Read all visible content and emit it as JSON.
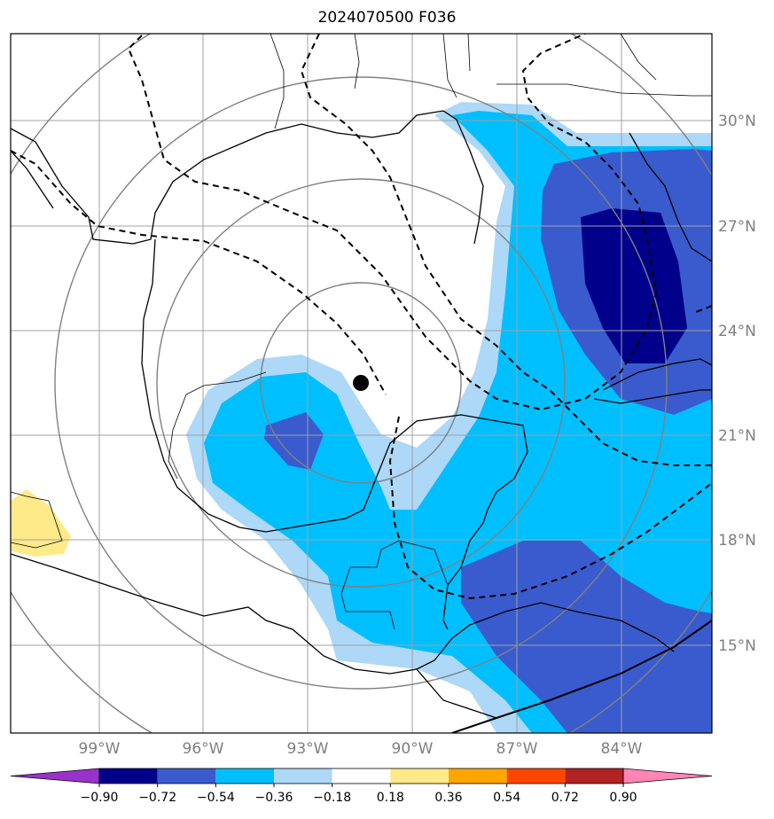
{
  "title": "2024070500 F036",
  "lon_labels": [
    "99°W",
    "96°W",
    "93°W",
    "90°W",
    "87°W",
    "84°W"
  ],
  "lat_labels": [
    "30°N",
    "27°N",
    "24°N",
    "21°N",
    "18°N",
    "15°N"
  ],
  "colorbar": {
    "labels": [
      "−0.90",
      "−0.72",
      "−0.54",
      "−0.36",
      "−0.18",
      "0.18",
      "0.36",
      "0.54",
      "0.72",
      "0.90"
    ],
    "colors": [
      "#9932cc",
      "#00008b",
      "#3a5bcd",
      "#00bfff",
      "#add8f7",
      "#ffffff",
      "#ffea8a",
      "#ffa500",
      "#ff4500",
      "#b22222",
      "#ff85b4"
    ]
  },
  "marker": {
    "name": "storm-center",
    "color": "#000000"
  },
  "colors": {
    "contour_lines": "#000000",
    "range_rings": "#808080",
    "gridlines": "#a0a0a0",
    "coast": "#000000"
  }
}
